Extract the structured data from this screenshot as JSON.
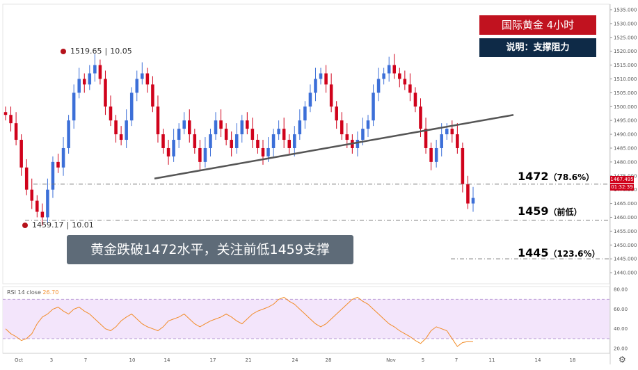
{
  "header": {
    "title": "国际黄金  4小时",
    "note": "说明：支撑阻力"
  },
  "banner": "黄金跌破1472水平，关注前低1459支撑",
  "levels": [
    {
      "main": "1472",
      "sub": "（78.6%）",
      "price": 1472
    },
    {
      "main": "1459",
      "sub": "（前低）",
      "price": 1459
    },
    {
      "main": "1445",
      "sub": "（123.6%）",
      "price": 1445
    }
  ],
  "high_label": {
    "price": "1519.65",
    "pct": "10.05"
  },
  "low_label": {
    "price": "1459.17",
    "pct": "10.01"
  },
  "rsi": {
    "label": "RSI 14 close",
    "value": "26.70"
  },
  "price_tags": {
    "last": "1467.495",
    "timer": "01:32:39"
  },
  "colors": {
    "up": "#3c6fd8",
    "down": "#d0021b",
    "rsi_line": "#f28c28",
    "rsi_band": "#f3e5fb",
    "trend": "#555555"
  },
  "chart_data": {
    "type": "candlestick",
    "title": "国际黄金  4小时",
    "y_axis": {
      "ylim": [
        1436,
        1537
      ],
      "ticks": [
        "1535.000",
        "1530.000",
        "1525.000",
        "1520.000",
        "1515.000",
        "1510.000",
        "1505.000",
        "1500.000",
        "1495.000",
        "1490.000",
        "1485.000",
        "1480.000",
        "1475.000",
        "1470.000",
        "1465.000",
        "1460.000",
        "1455.000",
        "1450.000",
        "1445.000",
        "1440.000"
      ]
    },
    "x_axis": {
      "ticks": [
        "Oct",
        "3",
        "7",
        "10",
        "14",
        "17",
        "21",
        "24",
        "28",
        "Nov",
        "5",
        "7",
        "11",
        "14",
        "18"
      ]
    },
    "candles_close": [
      1497,
      1494,
      1488,
      1478,
      1470,
      1466,
      1462,
      1460,
      1470,
      1480,
      1478,
      1485,
      1495,
      1505,
      1510,
      1508,
      1512,
      1515,
      1510,
      1500,
      1495,
      1490,
      1488,
      1495,
      1505,
      1510,
      1512,
      1508,
      1500,
      1490,
      1485,
      1482,
      1488,
      1492,
      1495,
      1490,
      1485,
      1480,
      1485,
      1490,
      1495,
      1492,
      1488,
      1485,
      1490,
      1495,
      1492,
      1488,
      1485,
      1482,
      1485,
      1490,
      1492,
      1488,
      1485,
      1490,
      1495,
      1500,
      1505,
      1510,
      1512,
      1508,
      1500,
      1495,
      1490,
      1488,
      1485,
      1488,
      1492,
      1495,
      1505,
      1510,
      1512,
      1515,
      1512,
      1510,
      1508,
      1505,
      1500,
      1492,
      1485,
      1480,
      1485,
      1490,
      1492,
      1490,
      1485,
      1472,
      1465,
      1467
    ],
    "support_resistance": [
      1472,
      1459,
      1445
    ],
    "trendline": {
      "from": [
        1474,
        0.245
      ],
      "to": [
        1497,
        0.8
      ]
    },
    "annotations": [
      {
        "text": "1519.65 | 10.05",
        "price": 1519.65
      },
      {
        "text": "1459.17 | 10.01",
        "price": 1459.17
      }
    ],
    "rsi": {
      "name": "RSI 14 close",
      "ylim": [
        15,
        83
      ],
      "ticks": [
        "80.00",
        "60.00",
        "40.00",
        "20.00"
      ],
      "band": [
        30,
        70
      ],
      "values": [
        40,
        35,
        32,
        28,
        30,
        35,
        45,
        52,
        55,
        60,
        62,
        58,
        55,
        60,
        62,
        58,
        55,
        50,
        45,
        40,
        38,
        42,
        48,
        52,
        55,
        50,
        45,
        42,
        40,
        38,
        42,
        48,
        50,
        52,
        55,
        50,
        45,
        42,
        45,
        48,
        50,
        52,
        55,
        52,
        48,
        45,
        50,
        55,
        58,
        60,
        62,
        65,
        70,
        72,
        68,
        65,
        60,
        55,
        50,
        45,
        42,
        45,
        50,
        55,
        60,
        65,
        70,
        72,
        68,
        65,
        60,
        55,
        50,
        45,
        42,
        38,
        35,
        32,
        28,
        25,
        30,
        38,
        42,
        40,
        38,
        30,
        22,
        26,
        27,
        26.7
      ]
    }
  }
}
